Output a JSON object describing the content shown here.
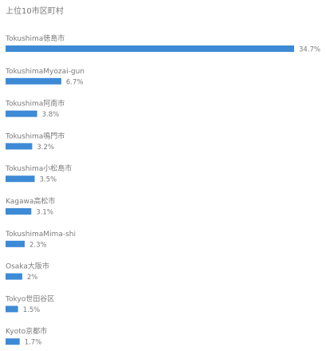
{
  "chart_data": {
    "type": "bar",
    "orientation": "horizontal",
    "title": "上位10市区町村",
    "categories": [
      "Tokushima徳島市",
      "TokushimaMyozai-gun",
      "Tokushima阿南市",
      "Tokushima鳴門市",
      "Tokushima小松島市",
      "Kagawa高松市",
      "TokushimaMima-shi",
      "Osaka大阪市",
      "Tokyo世田谷区",
      "Kyoto京都市"
    ],
    "values": [
      34.7,
      6.7,
      3.8,
      3.2,
      3.5,
      3.1,
      2.3,
      2,
      1.5,
      1.7
    ],
    "value_labels": [
      "34.7%",
      "6.7%",
      "3.8%",
      "3.2%",
      "3.5%",
      "3.1%",
      "2.3%",
      "2%",
      "1.5%",
      "1.7%"
    ],
    "value_unit": "%",
    "bar_color": "#3d8ad6",
    "text_color": "#777777",
    "grid": false,
    "legend": "none"
  }
}
